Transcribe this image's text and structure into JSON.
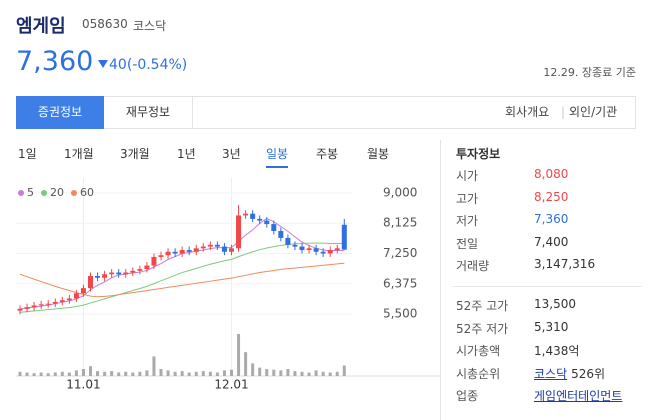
{
  "header": {
    "name": "엠게임",
    "code": "058630",
    "market": "코스닥",
    "price": "7,360",
    "change": "40(-0.54%)",
    "change_color": "#2f6fdf",
    "asof": "12.29. 장종료 기준"
  },
  "tabs": {
    "items": [
      "증권정보",
      "재무정보"
    ],
    "active": 0,
    "links": [
      "회사개요",
      "외인/기관"
    ]
  },
  "periods": {
    "items": [
      "1일",
      "1개월",
      "3개월",
      "1년",
      "3년",
      "일봉",
      "주봉",
      "월봉"
    ],
    "active": 5
  },
  "chart": {
    "type": "candlestick",
    "categories": [
      null,
      null,
      null,
      null,
      null,
      null,
      null,
      null,
      null,
      "11.01",
      null,
      null,
      null,
      null,
      null,
      null,
      null,
      null,
      null,
      null,
      null,
      null,
      null,
      null,
      null,
      null,
      null,
      null,
      null,
      null,
      "12.01",
      null,
      null,
      null,
      null,
      null,
      null,
      null,
      null,
      null,
      null,
      null,
      null,
      null,
      null,
      null,
      null
    ],
    "open": [
      5600,
      5650,
      5700,
      5750,
      5780,
      5800,
      5850,
      5900,
      5950,
      6100,
      6250,
      6600,
      6550,
      6650,
      6700,
      6650,
      6700,
      6750,
      6800,
      6900,
      7150,
      7200,
      7300,
      7250,
      7350,
      7300,
      7400,
      7450,
      7500,
      7450,
      7300,
      7400,
      8350,
      8400,
      8250,
      8200,
      8100,
      7900,
      7700,
      7500,
      7450,
      7350,
      7400,
      7300,
      7250,
      7350,
      8080
    ],
    "high": [
      5750,
      5800,
      5850,
      5880,
      5900,
      5950,
      6000,
      6050,
      6200,
      6350,
      6700,
      6700,
      6750,
      6800,
      6800,
      6800,
      6850,
      6900,
      7000,
      7250,
      7300,
      7400,
      7400,
      7450,
      7450,
      7500,
      7550,
      7600,
      7600,
      7550,
      7500,
      8650,
      8500,
      8500,
      8350,
      8300,
      8200,
      8000,
      7800,
      7600,
      7550,
      7500,
      7500,
      7400,
      7450,
      7500,
      8250
    ],
    "low": [
      5500,
      5550,
      5600,
      5650,
      5680,
      5700,
      5750,
      5800,
      5850,
      6000,
      6150,
      6450,
      6450,
      6550,
      6550,
      6550,
      6600,
      6650,
      6700,
      6800,
      7050,
      7100,
      7150,
      7150,
      7200,
      7200,
      7300,
      7350,
      7350,
      7200,
      7200,
      7300,
      8250,
      8150,
      8100,
      8000,
      7800,
      7600,
      7400,
      7350,
      7250,
      7250,
      7200,
      7150,
      7150,
      7250,
      7360
    ],
    "close": [
      5650,
      5700,
      5750,
      5780,
      5800,
      5850,
      5900,
      5950,
      6100,
      6250,
      6600,
      6550,
      6650,
      6700,
      6650,
      6700,
      6750,
      6800,
      6900,
      7150,
      7200,
      7300,
      7250,
      7350,
      7300,
      7400,
      7450,
      7500,
      7450,
      7300,
      7400,
      8350,
      8400,
      8250,
      8200,
      8100,
      7900,
      7700,
      7500,
      7450,
      7350,
      7400,
      7300,
      7250,
      7350,
      7400,
      7360
    ],
    "volume": [
      6,
      5,
      4,
      5,
      4,
      5,
      6,
      5,
      8,
      10,
      14,
      7,
      6,
      7,
      5,
      6,
      5,
      6,
      8,
      28,
      10,
      8,
      6,
      7,
      5,
      6,
      7,
      6,
      5,
      8,
      9,
      60,
      34,
      18,
      12,
      10,
      9,
      8,
      10,
      7,
      6,
      5,
      8,
      6,
      5,
      6,
      15
    ],
    "up_color": "#f0474a",
    "down_color": "#2f6fdf",
    "series": [
      {
        "name": "5",
        "color": "#c77ddb",
        "values": [
          5650,
          5680,
          5700,
          5730,
          5760,
          5800,
          5840,
          5880,
          5940,
          6030,
          6200,
          6330,
          6430,
          6550,
          6630,
          6650,
          6690,
          6710,
          6760,
          6860,
          6960,
          7080,
          7160,
          7250,
          7280,
          7320,
          7350,
          7390,
          7420,
          7420,
          7420,
          7600,
          7780,
          7930,
          8120,
          8260,
          8170,
          8030,
          7890,
          7730,
          7580,
          7480,
          7400,
          7350,
          7330,
          7340,
          7330
        ]
      },
      {
        "name": "20",
        "color": "#7fc97f",
        "values": [
          5550,
          5570,
          5590,
          5610,
          5630,
          5650,
          5670,
          5690,
          5720,
          5760,
          5820,
          5880,
          5940,
          6000,
          6060,
          6120,
          6180,
          6240,
          6300,
          6380,
          6460,
          6540,
          6620,
          6700,
          6760,
          6820,
          6880,
          6940,
          6990,
          7040,
          7080,
          7160,
          7230,
          7300,
          7360,
          7410,
          7450,
          7480,
          7510,
          7530,
          7540,
          7550,
          7550,
          7550,
          7540,
          7540,
          7540
        ]
      },
      {
        "name": "60",
        "color": "#f08a5d",
        "values": [
          6650,
          6580,
          6510,
          6440,
          6370,
          6300,
          6240,
          6180,
          6120,
          6070,
          6020,
          6000,
          6010,
          6030,
          6060,
          6090,
          6120,
          6150,
          6180,
          6210,
          6240,
          6270,
          6300,
          6330,
          6360,
          6390,
          6420,
          6450,
          6480,
          6510,
          6540,
          6580,
          6620,
          6660,
          6700,
          6730,
          6760,
          6790,
          6810,
          6830,
          6850,
          6870,
          6890,
          6910,
          6930,
          6950,
          6970
        ]
      }
    ],
    "ylim": [
      5300,
      9200
    ],
    "yticks": [
      {
        "value": 9000,
        "label": "9,000"
      },
      {
        "value": 8125,
        "label": "8,125"
      },
      {
        "value": 7250,
        "label": "7,250"
      },
      {
        "value": 6375,
        "label": "6,375"
      },
      {
        "value": 5500,
        "label": "5,500"
      }
    ]
  },
  "info": {
    "title": "투자정보",
    "rows": [
      {
        "label": "시가",
        "value": "8,080",
        "color": "#f0474a"
      },
      {
        "label": "고가",
        "value": "8,250",
        "color": "#f0474a"
      },
      {
        "label": "저가",
        "value": "7,360",
        "color": "#2f6fdf"
      },
      {
        "label": "전일",
        "value": "7,400"
      },
      {
        "label": "거래량",
        "value": "3,147,316"
      }
    ],
    "rows2": [
      {
        "label": "52주 고가",
        "value": "13,500"
      },
      {
        "label": "52주 저가",
        "value": "5,310"
      },
      {
        "label": "시가총액",
        "value": "1,438억"
      },
      {
        "label": "시총순위",
        "link": "코스닥",
        "value": "526위"
      },
      {
        "label": "업종",
        "link": "게임엔터테인먼트"
      }
    ]
  }
}
